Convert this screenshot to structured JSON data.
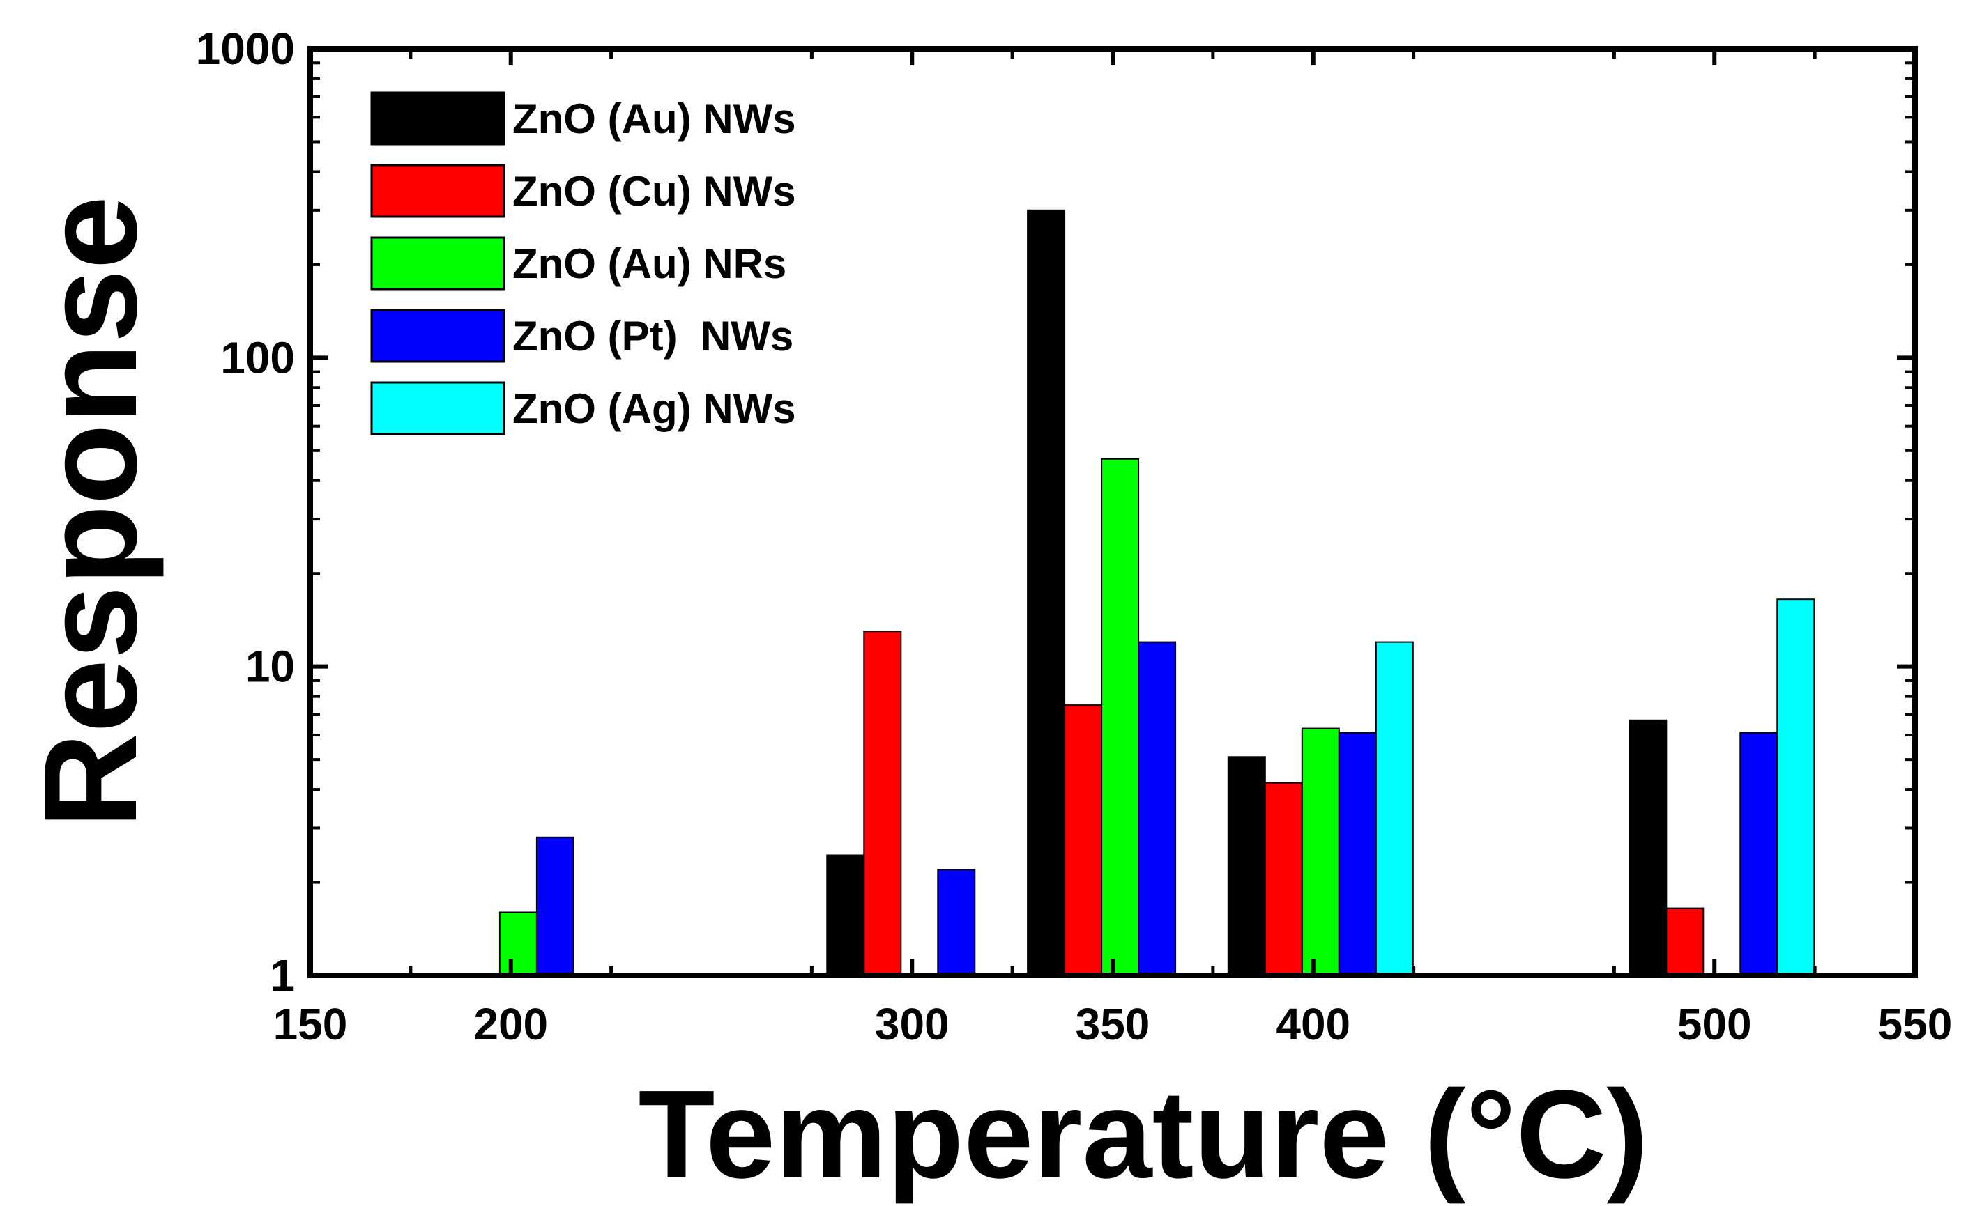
{
  "chart_data": {
    "type": "bar",
    "xlabel": "Temperature (°C)",
    "ylabel": "Response",
    "yscale": "log",
    "ylim": [
      1,
      1000
    ],
    "xlim": [
      150,
      550
    ],
    "xticks": [
      150,
      200,
      300,
      350,
      400,
      500,
      550
    ],
    "yticks": [
      1,
      10,
      100,
      1000
    ],
    "grid": false,
    "legend_position": "top-left",
    "categories": [
      200,
      300,
      350,
      400,
      500
    ],
    "series": [
      {
        "name": "ZnO (Au) NWs",
        "color": "#000000",
        "values": [
          null,
          2.45,
          300,
          5.1,
          6.7
        ]
      },
      {
        "name": "ZnO (Cu) NWs",
        "color": "#ff0000",
        "values": [
          null,
          13,
          7.5,
          4.2,
          1.65
        ]
      },
      {
        "name": "ZnO (Au) NRs",
        "color": "#00ff00",
        "values": [
          1.6,
          null,
          47,
          6.3,
          null
        ]
      },
      {
        "name": "ZnO (Pt)  NWs",
        "color": "#0000ff",
        "values": [
          2.8,
          2.2,
          12,
          6.1,
          6.1
        ]
      },
      {
        "name": "ZnO (Ag) NWs",
        "color": "#00ffff",
        "values": [
          null,
          null,
          null,
          12,
          16.5
        ]
      }
    ]
  }
}
